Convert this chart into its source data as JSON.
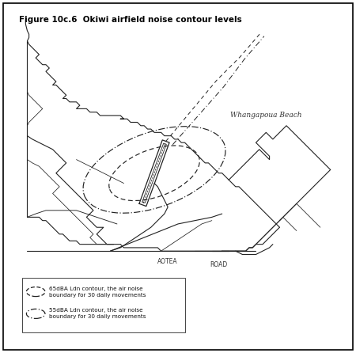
{
  "title": "Figure 10c.6  Okiwi airfield noise contour levels",
  "title_fontsize": 7.5,
  "background_color": "#ffffff",
  "border_color": "#000000",
  "text_color": "#000000",
  "label_whangapoua": "Whangapoua Beach",
  "label_aotea": "AOTEA",
  "label_road": "ROAD",
  "coast_color": "#222222",
  "contour_color": "#222222",
  "lw_coast": 0.8,
  "lw_contour": 0.85,
  "lw_runway": 0.9
}
